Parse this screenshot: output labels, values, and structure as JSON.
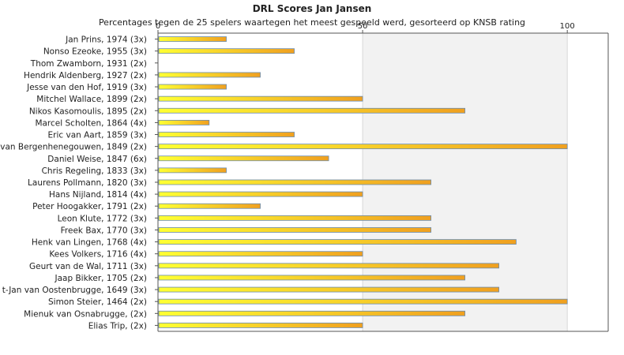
{
  "chart_data": {
    "type": "bar",
    "orientation": "horizontal",
    "title": "DRL Scores Jan Jansen",
    "subtitle": "Percentages tegen de 25 spelers waartegen het meest gespeeld werd, gesorteerd op KNSB rating",
    "xlim": [
      0,
      110
    ],
    "xticks": [
      0,
      50,
      100
    ],
    "grid": true,
    "categories": [
      "Jan Prins, 1974 (3x)",
      "Nonso Ezeoke, 1955 (3x)",
      "Thom Zwamborn, 1931 (2x)",
      "Hendrik Aldenberg, 1927 (2x)",
      "Jesse van den Hof, 1919 (3x)",
      "Mitchel Wallace, 1899 (2x)",
      "Nikos Kasomoulis, 1895 (2x)",
      "Marcel Scholten, 1864 (4x)",
      "Eric van Aart, 1859 (3x)",
      "van Bergenhenegouwen, 1849 (2x)",
      "Daniel Weise, 1847 (6x)",
      "Chris Regeling, 1833 (3x)",
      "Laurens Pollmann, 1820 (3x)",
      "Hans Nijland, 1814 (4x)",
      "Peter Hoogakker, 1791 (2x)",
      "Leon Klute, 1772 (3x)",
      "Freek Bax, 1770 (3x)",
      "Henk van Lingen, 1768 (4x)",
      "Kees Volkers, 1716 (4x)",
      "Geurt van de Wal, 1711 (3x)",
      "Jaap Bikker, 1705 (2x)",
      "t-Jan van Oostenbrugge, 1649 (3x)",
      "Simon Steier, 1464 (2x)",
      "Mienuk van Osnabrugge,  (2x)",
      "Elias Trip,  (2x)"
    ],
    "values": [
      16.7,
      33.3,
      0,
      25,
      16.7,
      50,
      75,
      12.5,
      33.3,
      100,
      41.7,
      16.7,
      66.7,
      50,
      25,
      66.7,
      66.7,
      87.5,
      50,
      83.3,
      75,
      83.3,
      100,
      75,
      50
    ],
    "colors": {
      "bar_light": "#ffff33",
      "bar_dark": "#f0a020",
      "bar_edge": "#6a8cb0",
      "band_shade": "#f2f2f2",
      "axis": "#555555",
      "grid": "#d8d8d8"
    }
  }
}
